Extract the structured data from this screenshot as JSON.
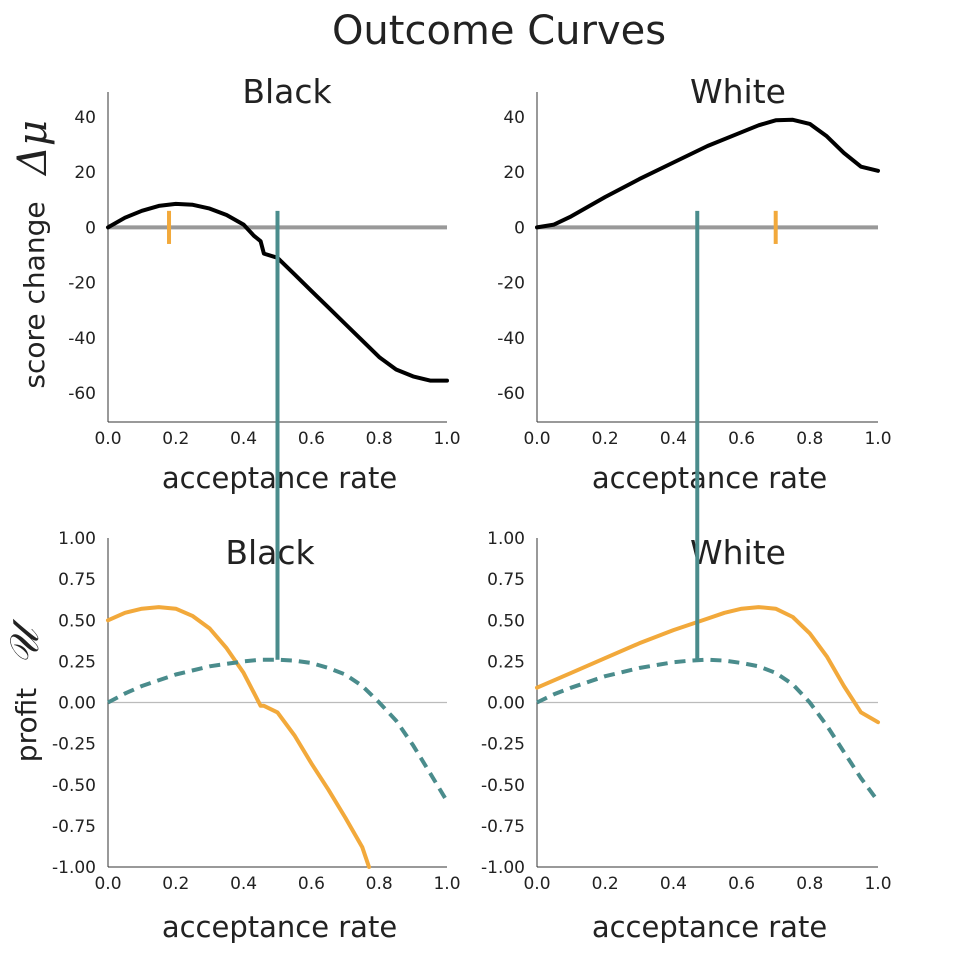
{
  "title": "Outcome Curves",
  "colors": {
    "outcome": "#000000",
    "institution_profit": "#f2a93b",
    "connector": "#4a8c8c",
    "zero_line_top": "#999999",
    "zero_line_bottom": "#bbbbbb"
  },
  "chart_data": [
    {
      "id": "score-black",
      "type": "line",
      "title": "Black",
      "xlabel": "acceptance rate",
      "ylabel": "score change",
      "ylabel_symbol": "Δμ",
      "xlim": [
        0,
        1
      ],
      "ylim": [
        -70,
        50
      ],
      "xticks": [
        "0.0",
        "0.2",
        "0.4",
        "0.6",
        "0.8",
        "1.0"
      ],
      "yticks": [
        "40",
        "20",
        "0",
        "-20",
        "-40",
        "-60"
      ],
      "series": [
        {
          "key": "outcome",
          "color": "#000000",
          "style": "solid",
          "x": [
            0,
            0.05,
            0.1,
            0.15,
            0.2,
            0.25,
            0.3,
            0.35,
            0.4,
            0.43,
            0.45,
            0.46,
            0.5,
            0.55,
            0.6,
            0.65,
            0.7,
            0.75,
            0.8,
            0.85,
            0.9,
            0.95,
            1.0
          ],
          "y": [
            0,
            3.5,
            6,
            7.8,
            8.5,
            8.2,
            6.8,
            4.5,
            1,
            -3,
            -5,
            -9.5,
            -11,
            -17,
            -23,
            -29,
            -35,
            -41,
            -47,
            -51.5,
            -54,
            -55.5,
            -55.5
          ]
        }
      ],
      "markers": [
        {
          "key": "orange-tick",
          "color": "#f2a93b",
          "x": 0.18,
          "y": [
            -6,
            6
          ]
        }
      ],
      "zero_line": 0,
      "connector_x": 0.5,
      "connector_y_top": 6
    },
    {
      "id": "score-white",
      "type": "line",
      "title": "White",
      "xlabel": "acceptance rate",
      "xlim": [
        0,
        1
      ],
      "ylim": [
        -70,
        50
      ],
      "xticks": [
        "0.0",
        "0.2",
        "0.4",
        "0.6",
        "0.8",
        "1.0"
      ],
      "yticks": [
        "40",
        "20",
        "0",
        "-20",
        "-40",
        "-60"
      ],
      "series": [
        {
          "key": "outcome",
          "color": "#000000",
          "style": "solid",
          "x": [
            0,
            0.05,
            0.1,
            0.2,
            0.3,
            0.4,
            0.5,
            0.6,
            0.65,
            0.7,
            0.75,
            0.8,
            0.85,
            0.9,
            0.95,
            1.0
          ],
          "y": [
            0,
            1,
            4,
            11,
            17.5,
            23.5,
            29.5,
            34.5,
            37,
            38.8,
            39,
            37.5,
            33,
            27,
            22,
            20.5
          ]
        }
      ],
      "markers": [
        {
          "key": "orange-tick",
          "color": "#f2a93b",
          "x": 0.7,
          "y": [
            -6,
            6
          ]
        }
      ],
      "zero_line": 0,
      "connector_x": 0.47,
      "connector_y_top": 6
    },
    {
      "id": "profit-black",
      "type": "line",
      "title": "Black",
      "xlabel": "acceptance rate",
      "ylabel": "profit",
      "ylabel_symbol": "𝒰",
      "xlim": [
        0,
        1
      ],
      "ylim": [
        -1,
        1
      ],
      "xticks": [
        "0.0",
        "0.2",
        "0.4",
        "0.6",
        "0.8",
        "1.0"
      ],
      "yticks": [
        "1.00",
        "0.75",
        "0.50",
        "0.25",
        "0.00",
        "-0.25",
        "-0.50",
        "-0.75",
        "-1.00"
      ],
      "series": [
        {
          "key": "institution",
          "color": "#f2a93b",
          "style": "solid",
          "x": [
            0,
            0.05,
            0.1,
            0.15,
            0.2,
            0.25,
            0.3,
            0.35,
            0.4,
            0.43,
            0.45,
            0.46,
            0.5,
            0.55,
            0.6,
            0.65,
            0.7,
            0.75,
            0.77
          ],
          "y": [
            0.5,
            0.545,
            0.57,
            0.58,
            0.57,
            0.525,
            0.45,
            0.33,
            0.18,
            0.06,
            -0.02,
            -0.02,
            -0.06,
            -0.2,
            -0.37,
            -0.53,
            -0.7,
            -0.88,
            -1.0
          ]
        },
        {
          "key": "selection",
          "color": "#4a8c8c",
          "style": "dashed",
          "x": [
            0,
            0.05,
            0.1,
            0.2,
            0.3,
            0.4,
            0.45,
            0.5,
            0.55,
            0.6,
            0.65,
            0.7,
            0.75,
            0.8,
            0.85,
            0.9,
            0.95,
            1.0
          ],
          "y": [
            0,
            0.055,
            0.1,
            0.17,
            0.22,
            0.25,
            0.26,
            0.26,
            0.255,
            0.24,
            0.21,
            0.17,
            0.1,
            0.0,
            -0.11,
            -0.26,
            -0.43,
            -0.6
          ]
        }
      ],
      "zero_line": 0,
      "connector_x": 0.5,
      "connector_y_bottom": 0.26
    },
    {
      "id": "profit-white",
      "type": "line",
      "title": "White",
      "xlabel": "acceptance rate",
      "xlim": [
        0,
        1
      ],
      "ylim": [
        -1,
        1
      ],
      "xticks": [
        "0.0",
        "0.2",
        "0.4",
        "0.6",
        "0.8",
        "1.0"
      ],
      "yticks": [
        "1.00",
        "0.75",
        "0.50",
        "0.25",
        "0.00",
        "-0.25",
        "-0.50",
        "-0.75",
        "-1.00"
      ],
      "series": [
        {
          "key": "institution",
          "color": "#f2a93b",
          "style": "solid",
          "x": [
            0,
            0.1,
            0.2,
            0.3,
            0.4,
            0.5,
            0.55,
            0.6,
            0.65,
            0.7,
            0.75,
            0.8,
            0.85,
            0.9,
            0.95,
            1.0
          ],
          "y": [
            0.09,
            0.18,
            0.27,
            0.36,
            0.44,
            0.51,
            0.545,
            0.57,
            0.58,
            0.57,
            0.52,
            0.42,
            0.28,
            0.1,
            -0.06,
            -0.12
          ]
        },
        {
          "key": "selection",
          "color": "#4a8c8c",
          "style": "dashed",
          "x": [
            0,
            0.05,
            0.1,
            0.2,
            0.3,
            0.4,
            0.45,
            0.5,
            0.55,
            0.6,
            0.65,
            0.7,
            0.75,
            0.8,
            0.85,
            0.9,
            0.95,
            1.0
          ],
          "y": [
            0,
            0.05,
            0.09,
            0.16,
            0.21,
            0.245,
            0.255,
            0.26,
            0.255,
            0.24,
            0.22,
            0.18,
            0.11,
            0.0,
            -0.14,
            -0.3,
            -0.46,
            -0.6
          ]
        }
      ],
      "zero_line": 0,
      "connector_x": 0.47,
      "connector_y_bottom": 0.26
    }
  ]
}
